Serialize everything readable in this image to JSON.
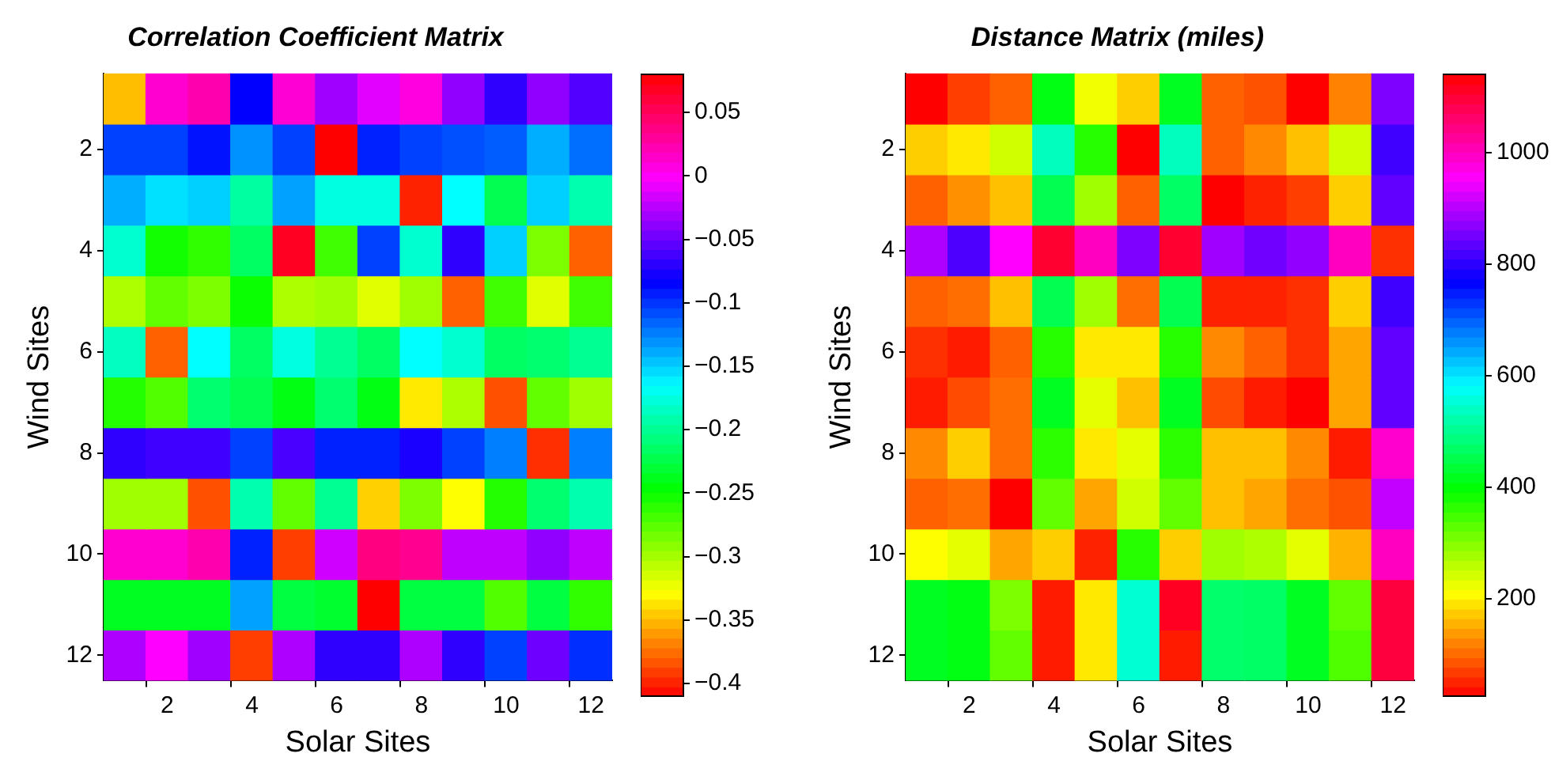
{
  "chart_data": [
    {
      "type": "heatmap",
      "title": "Correlation Coefficient Matrix",
      "xlabel": "Solar Sites",
      "ylabel": "Wind Sites",
      "categories": [
        null,
        "2",
        null,
        "4",
        null,
        "6",
        null,
        "8",
        null,
        "10",
        null,
        "12"
      ],
      "y_categories": [
        null,
        "2",
        null,
        "4",
        null,
        "6",
        null,
        "8",
        null,
        "10",
        null,
        "12"
      ],
      "cells": [
        [
          -0.349,
          0.013,
          0.024,
          -0.083,
          0.012,
          -0.032,
          -0.011,
          0.008,
          -0.037,
          -0.068,
          -0.037,
          -0.057
        ],
        [
          -0.104,
          -0.104,
          -0.089,
          -0.13,
          -0.104,
          -0.41,
          -0.094,
          -0.104,
          -0.109,
          -0.113,
          -0.139,
          -0.119
        ],
        [
          -0.139,
          -0.155,
          -0.15,
          -0.195,
          -0.135,
          -0.175,
          -0.175,
          -0.399,
          -0.165,
          -0.221,
          -0.15,
          -0.191
        ],
        [
          -0.18,
          -0.252,
          -0.262,
          -0.215,
          0.069,
          -0.267,
          -0.104,
          -0.18,
          -0.068,
          -0.15,
          -0.287,
          -0.379
        ],
        [
          -0.302,
          -0.278,
          -0.287,
          -0.25,
          -0.302,
          -0.298,
          -0.319,
          -0.298,
          -0.379,
          -0.267,
          -0.319,
          -0.267
        ],
        [
          -0.185,
          -0.379,
          -0.165,
          -0.215,
          -0.175,
          -0.2,
          -0.215,
          -0.165,
          -0.18,
          -0.215,
          -0.211,
          -0.2
        ],
        [
          -0.258,
          -0.273,
          -0.211,
          -0.221,
          -0.241,
          -0.211,
          -0.241,
          -0.335,
          -0.302,
          -0.384,
          -0.278,
          -0.298
        ],
        [
          -0.068,
          -0.063,
          -0.063,
          -0.104,
          -0.06,
          -0.094,
          -0.094,
          -0.075,
          -0.104,
          -0.124,
          -0.395,
          -0.124
        ],
        [
          -0.298,
          -0.298,
          -0.384,
          -0.191,
          -0.278,
          -0.2,
          -0.343,
          -0.287,
          -0.328,
          -0.258,
          -0.211,
          -0.191
        ],
        [
          0.013,
          0.013,
          0.024,
          -0.094,
          -0.39,
          -0.017,
          0.039,
          0.034,
          -0.022,
          -0.022,
          -0.037,
          -0.022
        ],
        [
          -0.236,
          -0.236,
          -0.236,
          -0.135,
          -0.226,
          -0.232,
          -0.41,
          -0.226,
          -0.226,
          -0.273,
          -0.226,
          -0.262
        ],
        [
          -0.028,
          -0.002,
          -0.032,
          -0.39,
          -0.028,
          -0.068,
          -0.068,
          -0.028,
          -0.068,
          -0.104,
          -0.048,
          -0.098
        ]
      ],
      "clim": [
        -0.41,
        0.08
      ],
      "cticks": [
        -0.4,
        -0.35,
        -0.3,
        -0.25,
        -0.2,
        -0.15,
        -0.1,
        -0.05,
        0,
        0.05
      ]
    },
    {
      "type": "heatmap",
      "title": "Distance Matrix (miles)",
      "xlabel": "Solar Sites",
      "ylabel": "Wind Sites",
      "categories": [
        null,
        "2",
        null,
        "4",
        null,
        "6",
        null,
        "8",
        null,
        "10",
        null,
        "12"
      ],
      "y_categories": [
        null,
        "2",
        null,
        "4",
        null,
        "6",
        null,
        "8",
        null,
        "10",
        null,
        "12"
      ],
      "cells": [
        [
          25,
          70,
          95,
          410,
          220,
          175,
          420,
          95,
          85,
          25,
          120,
          860
        ],
        [
          175,
          195,
          245,
          535,
          370,
          25,
          535,
          95,
          125,
          165,
          245,
          815
        ],
        [
          95,
          130,
          165,
          455,
          280,
          95,
          470,
          25,
          50,
          70,
          175,
          840
        ],
        [
          895,
          825,
          955,
          1105,
          1000,
          860,
          1105,
          885,
          850,
          875,
          1000,
          60
        ],
        [
          95,
          105,
          165,
          455,
          280,
          105,
          455,
          50,
          50,
          60,
          175,
          815
        ],
        [
          60,
          45,
          95,
          370,
          195,
          195,
          370,
          125,
          95,
          60,
          145,
          840
        ],
        [
          45,
          80,
          105,
          420,
          230,
          165,
          420,
          80,
          45,
          25,
          145,
          840
        ],
        [
          125,
          175,
          105,
          365,
          195,
          230,
          365,
          165,
          165,
          125,
          45,
          990
        ],
        [
          95,
          105,
          25,
          325,
          145,
          245,
          325,
          165,
          145,
          105,
          85,
          910
        ],
        [
          210,
          230,
          145,
          175,
          50,
          370,
          175,
          280,
          270,
          230,
          155,
          1000
        ],
        [
          420,
          410,
          305,
          45,
          195,
          550,
          1115,
          475,
          470,
          420,
          325,
          1095
        ],
        [
          420,
          410,
          325,
          45,
          195,
          550,
          45,
          475,
          470,
          420,
          340,
          1095
        ]
      ],
      "clim": [
        25,
        1140
      ],
      "cticks": [
        200,
        400,
        600,
        800,
        1000
      ]
    }
  ]
}
